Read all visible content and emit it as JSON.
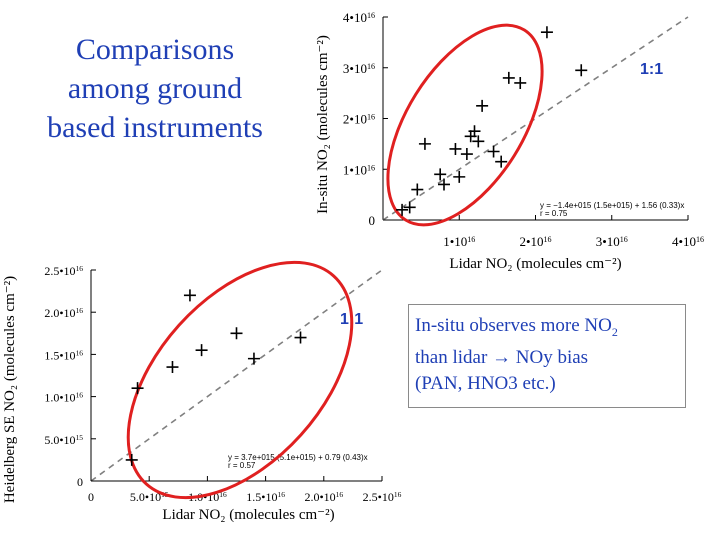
{
  "title": {
    "line1": "Comparisons",
    "line2": "among ground",
    "line3": "based instruments"
  },
  "note": {
    "line1_text": "In-situ observes more NO",
    "line1_sub": "2",
    "line2_pre": "than lidar ",
    "line2_arrow": "→",
    "line2_post": " NOy bias",
    "line3": "(PAN, HNO3 etc.)"
  },
  "chart_data": [
    {
      "type": "scatter",
      "xlabel": "Lidar NO₂ (molecules cm⁻²)",
      "ylabel": "In-situ NO₂ (molecules cm⁻²)",
      "xlim": [
        0,
        4e+16
      ],
      "ylim": [
        0,
        4e+16
      ],
      "xticks": [
        {
          "v": 1e+16,
          "label": "1•1016"
        },
        {
          "v": 2e+16,
          "label": "2•1016"
        },
        {
          "v": 3e+16,
          "label": "3•1016"
        },
        {
          "v": 4e+16,
          "label": "4•1016"
        }
      ],
      "yticks": [
        {
          "v": 0,
          "label": "0"
        },
        {
          "v": 1e+16,
          "label": "1•1016"
        },
        {
          "v": 2e+16,
          "label": "2•1016"
        },
        {
          "v": 3e+16,
          "label": "3•1016"
        },
        {
          "v": 4e+16,
          "label": "4•1016"
        }
      ],
      "one_to_one_label": "1:1",
      "fit_line1": "y = −1.4e+015 (1.5e+015) + 1.56 (0.33)x",
      "fit_line2": "r = 0.75",
      "x": [
        2500000000000000.0,
        3500000000000000.0,
        4500000000000000.0,
        5500000000000000.0,
        7500000000000000.0,
        8000000000000000.0,
        9500000000000000.0,
        1e+16,
        1.1e+16,
        1.15e+16,
        1.2e+16,
        1.25e+16,
        1.3e+16,
        1.45e+16,
        1.55e+16,
        1.65e+16,
        1.8e+16,
        2.15e+16,
        2.6e+16
      ],
      "y": [
        2000000000000000.0,
        2500000000000000.0,
        6000000000000000.0,
        1.5e+16,
        9000000000000000.0,
        7000000000000000.0,
        1.4e+16,
        8500000000000000.0,
        1.3e+16,
        1.65e+16,
        1.75e+16,
        1.55e+16,
        2.25e+16,
        1.35e+16,
        1.15e+16,
        2.8e+16,
        2.7e+16,
        3.7e+16,
        2.95e+16
      ],
      "ellipse": "red",
      "colors": {
        "points": "#000000",
        "ellipse": "#e02020",
        "one_to_one": "#808080",
        "ratio_label": "#1f3fb5"
      }
    },
    {
      "type": "scatter",
      "xlabel": "Lidar NO₂ (molecules cm⁻²)",
      "ylabel": "Heidelberg SE NO₂ (molecules cm⁻²)",
      "xlim": [
        0,
        2.5e+16
      ],
      "ylim": [
        0,
        2.5e+16
      ],
      "xticks": [
        {
          "v": 0,
          "label": "0"
        },
        {
          "v": 5000000000000000.0,
          "label": "5.0•1015"
        },
        {
          "v": 1e+16,
          "label": "1.0•1016"
        },
        {
          "v": 1.5e+16,
          "label": "1.5•1016"
        },
        {
          "v": 2e+16,
          "label": "2.0•1016"
        },
        {
          "v": 2.5e+16,
          "label": "2.5•1016"
        }
      ],
      "yticks": [
        {
          "v": 0,
          "label": "0"
        },
        {
          "v": 5000000000000000.0,
          "label": "5.0•1015"
        },
        {
          "v": 1e+16,
          "label": "1.0•1016"
        },
        {
          "v": 1.5e+16,
          "label": "1.5•1016"
        },
        {
          "v": 2e+16,
          "label": "2.0•1016"
        },
        {
          "v": 2.5e+16,
          "label": "2.5•1016"
        }
      ],
      "one_to_one_label": "1:1",
      "fit_line1": "y = 3.7e+015 (5.1e+015) + 0.79 (0.43)x",
      "fit_line2": "r = 0.57",
      "x": [
        3500000000000000.0,
        4000000000000000.0,
        7000000000000000.0,
        8500000000000000.0,
        9500000000000000.0,
        1.25e+16,
        1.4e+16,
        1.8e+16
      ],
      "y": [
        2500000000000000.0,
        1.1e+16,
        1.35e+16,
        2.2e+16,
        1.55e+16,
        1.75e+16,
        1.45e+16,
        1.7e+16
      ],
      "ellipse": "red",
      "colors": {
        "points": "#000000",
        "ellipse": "#e02020",
        "one_to_one": "#808080",
        "ratio_label": "#1f3fb5"
      }
    }
  ]
}
